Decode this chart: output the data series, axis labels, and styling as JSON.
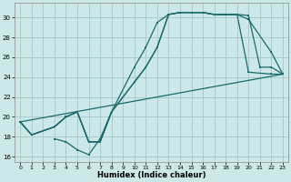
{
  "xlabel": "Humidex (Indice chaleur)",
  "bg_color": "#cce8e8",
  "grid_color": "#aacccc",
  "line_color": "#1a6b6b",
  "xlim": [
    -0.5,
    23.5
  ],
  "ylim": [
    15.5,
    31.5
  ],
  "xticks": [
    0,
    1,
    2,
    3,
    4,
    5,
    6,
    7,
    8,
    9,
    10,
    11,
    12,
    13,
    14,
    15,
    16,
    17,
    18,
    19,
    20,
    21,
    22,
    23
  ],
  "yticks": [
    16,
    18,
    20,
    22,
    24,
    26,
    28,
    30
  ],
  "line1_x": [
    0,
    1,
    3,
    4,
    5,
    6,
    7,
    8,
    10,
    11,
    12,
    13,
    14,
    15,
    16,
    17,
    18,
    19,
    20,
    21,
    22,
    23
  ],
  "line1_y": [
    19.5,
    18.2,
    19.0,
    20.0,
    20.5,
    17.5,
    17.5,
    20.5,
    25.0,
    27.0,
    29.5,
    30.3,
    30.5,
    30.5,
    30.5,
    30.3,
    30.3,
    30.3,
    30.2,
    25.0,
    25.0,
    24.3
  ],
  "line2_x": [
    0,
    1,
    3,
    4,
    5,
    6,
    7,
    8,
    10,
    11,
    12,
    13,
    14,
    15,
    16,
    17,
    18,
    19,
    20,
    22,
    23
  ],
  "line2_y": [
    19.5,
    18.2,
    19.0,
    20.0,
    20.5,
    17.5,
    17.5,
    20.5,
    23.5,
    25.0,
    27.0,
    30.3,
    30.5,
    30.5,
    30.5,
    30.3,
    30.3,
    30.3,
    29.8,
    26.5,
    24.3
  ],
  "line3_x": [
    0,
    1,
    3,
    4,
    5,
    6,
    7,
    8,
    10,
    11,
    12,
    13,
    14,
    15,
    16,
    17,
    18,
    19,
    20,
    22,
    23
  ],
  "line3_y": [
    19.5,
    18.2,
    19.0,
    20.0,
    20.5,
    17.5,
    17.5,
    20.5,
    23.5,
    25.0,
    27.0,
    30.3,
    30.5,
    30.5,
    30.5,
    30.3,
    30.3,
    30.3,
    24.5,
    24.3,
    24.3
  ],
  "line4_x": [
    0,
    23
  ],
  "line4_y": [
    19.5,
    24.3
  ],
  "line5_x": [
    3,
    4,
    5,
    6,
    7,
    8
  ],
  "line5_y": [
    17.8,
    17.5,
    16.7,
    16.2,
    17.8,
    20.5
  ]
}
